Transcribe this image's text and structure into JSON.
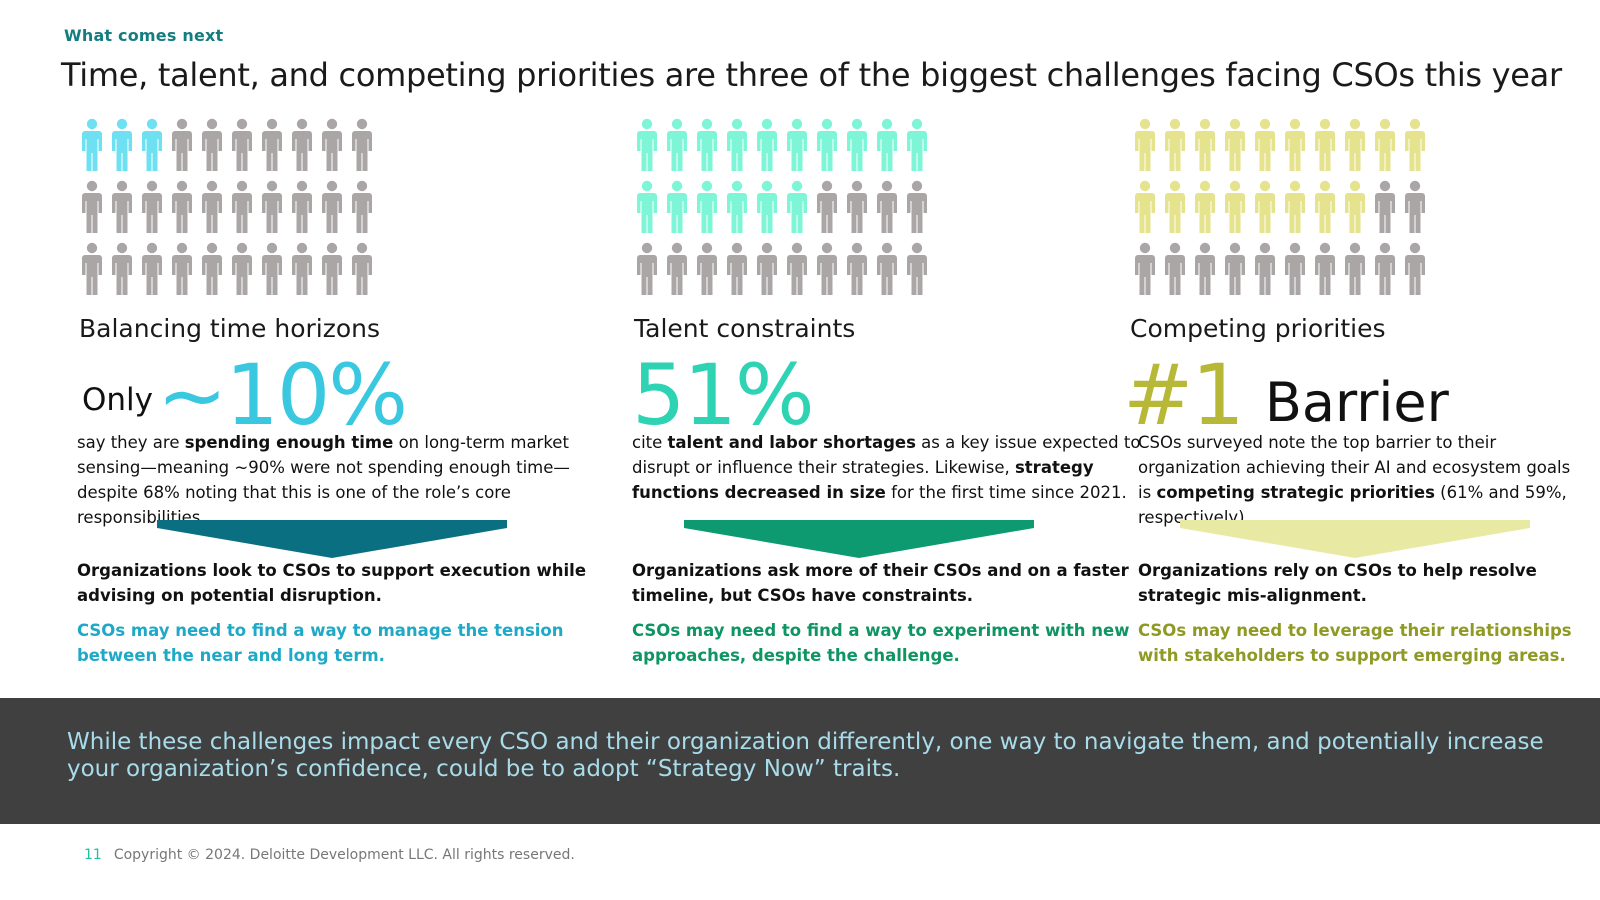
{
  "eyebrow": "What comes next",
  "headline": "Time, talent, and competing priorities are three of the biggest challenges facing CSOs this year",
  "colors": {
    "teal_heading": "#137d80",
    "gray_person": "#aaa6a6",
    "cyan": "#39c8e0",
    "mint": "#2ed3b3",
    "olive": "#b7b838",
    "banner_bg": "#404040",
    "banner_text": "#a8dcea"
  },
  "columns": [
    {
      "icon_name": "person-icon",
      "people_total": 30,
      "people_highlighted": 3,
      "highlight_color": "#6ee0f2",
      "title": "Balancing time horizons",
      "stat_prefix": "Only",
      "stat_value": "~10%",
      "stat_color": "#39c8e0",
      "stat_suffix": "",
      "desc_parts": [
        {
          "text": "say they are ",
          "bold": false
        },
        {
          "text": "spending enough time",
          "bold": true
        },
        {
          "text": " on long-term market sensing—meaning ~90% were not spending enough time—despite 68% noting that this is one of the role’s core responsibilities.",
          "bold": false
        }
      ],
      "arrow_color": "#0b6f82",
      "implication": "Organizations look to CSOs to support execution while advising on potential disruption.",
      "action": "CSOs may need to find a way to manage the tension between the near and long term.",
      "action_color": "#1fa9c6"
    },
    {
      "icon_name": "person-icon",
      "people_total": 30,
      "people_highlighted": 16,
      "highlight_color": "#7ef5d6",
      "title": "Talent constraints",
      "stat_prefix": "",
      "stat_value": "51%",
      "stat_color": "#2ed3b3",
      "stat_suffix": "",
      "desc_parts": [
        {
          "text": "cite ",
          "bold": false
        },
        {
          "text": "talent and labor shortages",
          "bold": true
        },
        {
          "text": " as a key issue expected to disrupt or influence their strategies. Likewise, ",
          "bold": false
        },
        {
          "text": "strategy functions decreased in size",
          "bold": true
        },
        {
          "text": " for the first time since 2021.",
          "bold": false
        }
      ],
      "arrow_color": "#0e9a70",
      "implication": "Organizations ask more of their CSOs and on a faster timeline, but CSOs have constraints.",
      "action": "CSOs may need to find a way to experiment with new approaches, despite the challenge.",
      "action_color": "#0f9563"
    },
    {
      "icon_name": "person-icon",
      "people_total": 30,
      "people_highlighted": 18,
      "highlight_color": "#e5e38e",
      "title": "Competing priorities",
      "stat_prefix": "",
      "stat_value": "#1",
      "stat_color": "#b7b838",
      "stat_suffix": "Barrier",
      "desc_parts": [
        {
          "text": "CSOs surveyed note the top barrier to their organization achieving their AI and ecosystem goals is ",
          "bold": false
        },
        {
          "text": "competing strategic priorities",
          "bold": true
        },
        {
          "text": " (61% and 59%, respectively).",
          "bold": false
        }
      ],
      "arrow_color": "#e8eaa4",
      "implication": "Organizations rely on CSOs to help resolve strategic mis-alignment.",
      "action": "CSOs may need to leverage their relationships with stakeholders to support emerging areas.",
      "action_color": "#8f9a25"
    }
  ],
  "banner": "While these challenges impact every CSO and their organization differently, one way to navigate them, and potentially increase your organization’s confidence, could be to adopt “Strategy Now” traits.",
  "footer": {
    "page_number": "11",
    "copyright": "Copyright © 2024. Deloitte Development LLC. All rights reserved."
  }
}
